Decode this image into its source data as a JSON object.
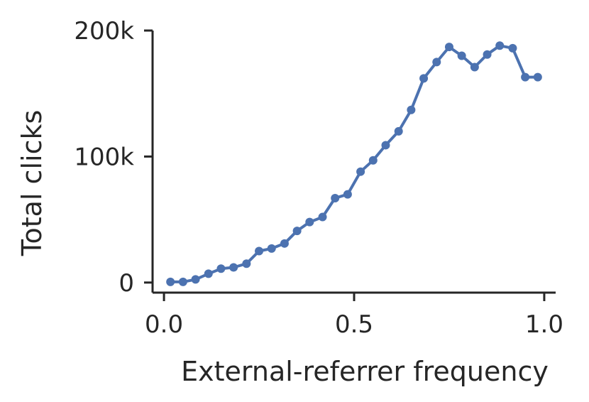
{
  "chart_data": {
    "type": "line",
    "title": "",
    "xlabel": "External-referrer frequency",
    "ylabel": "Total clicks",
    "xlim": [
      -0.03,
      1.03
    ],
    "ylim": [
      -8000,
      200000
    ],
    "xticks": [
      0.0,
      0.5,
      1.0
    ],
    "xtick_labels": [
      "0.0",
      "0.5",
      "1.0"
    ],
    "yticks": [
      0,
      100000,
      200000
    ],
    "ytick_labels": [
      "0",
      "100k",
      "200k"
    ],
    "grid": false,
    "legend": "none",
    "series": [
      {
        "color": "#4c72b0",
        "x": [
          0.017,
          0.05,
          0.083,
          0.117,
          0.15,
          0.183,
          0.217,
          0.25,
          0.283,
          0.317,
          0.35,
          0.383,
          0.417,
          0.45,
          0.483,
          0.517,
          0.55,
          0.583,
          0.617,
          0.65,
          0.683,
          0.717,
          0.75,
          0.783,
          0.817,
          0.85,
          0.883,
          0.917,
          0.95,
          0.983
        ],
        "y": [
          500,
          500,
          2500,
          7000,
          11000,
          12000,
          15000,
          25000,
          27000,
          31000,
          41000,
          48000,
          52000,
          67000,
          70000,
          88000,
          97000,
          109000,
          120000,
          137000,
          162000,
          175000,
          187000,
          180000,
          171000,
          181000,
          188000,
          186000,
          163000,
          163000
        ]
      }
    ]
  }
}
